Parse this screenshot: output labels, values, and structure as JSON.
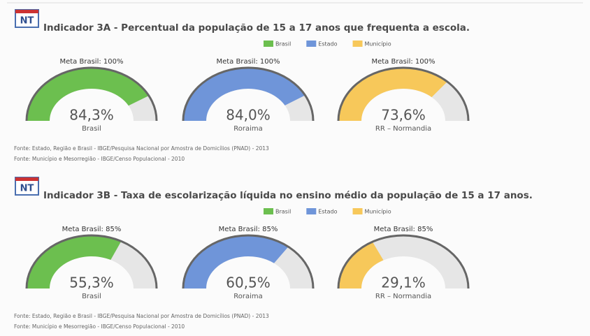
{
  "chart_data": [
    {
      "type": "gauge",
      "badge": "NT",
      "title": "Indicador 3A - Percentual da população de 15 a 17 anos que frequenta a escola.",
      "series": [
        {
          "name": "Brasil",
          "color": "#6cbf4f",
          "label": "Brasil",
          "values": [
            84.3
          ],
          "value_labels": [
            "84,3%"
          ],
          "target": 100,
          "target_label": "Meta Brasil: 100%"
        },
        {
          "name": "Estado",
          "color": "#6f95d9",
          "label": "Roraima",
          "values": [
            84.0
          ],
          "value_labels": [
            "84,0%"
          ],
          "target": 100,
          "target_label": "Meta Brasil: 100%"
        },
        {
          "name": "Município",
          "color": "#f7c85a",
          "label": "RR – Normandia",
          "values": [
            73.6
          ],
          "value_labels": [
            "73,6%"
          ],
          "target": 100,
          "target_label": "Meta Brasil: 100%"
        }
      ],
      "sources": [
        "Fonte: Estado, Região e Brasil - IBGE/Pesquisa Nacional por Amostra de Domicílios (PNAD) - 2013",
        "Fonte: Município e Mesorregião - IBGE/Censo Populacional - 2010"
      ]
    },
    {
      "type": "gauge",
      "badge": "NT",
      "title": "Indicador 3B - Taxa de escolarização líquida no ensino médio da população de 15 a 17 anos.",
      "series": [
        {
          "name": "Brasil",
          "color": "#6cbf4f",
          "label": "Brasil",
          "values": [
            55.3
          ],
          "value_labels": [
            "55,3%"
          ],
          "target": 85,
          "target_label": "Meta Brasil: 85%"
        },
        {
          "name": "Estado",
          "color": "#6f95d9",
          "label": "Roraima",
          "values": [
            60.5
          ],
          "value_labels": [
            "60,5%"
          ],
          "target": 85,
          "target_label": "Meta Brasil: 85%"
        },
        {
          "name": "Município",
          "color": "#f7c85a",
          "label": "RR – Normandia",
          "values": [
            29.1
          ],
          "value_labels": [
            "29,1%"
          ],
          "target": 85,
          "target_label": "Meta Brasil: 85%"
        }
      ],
      "sources": [
        "Fonte: Estado, Região e Brasil - IBGE/Pesquisa Nacional por Amostra de Domicílios (PNAD) - 2013",
        "Fonte: Município e Mesorregião - IBGE/Censo Populacional - 2010"
      ]
    }
  ]
}
